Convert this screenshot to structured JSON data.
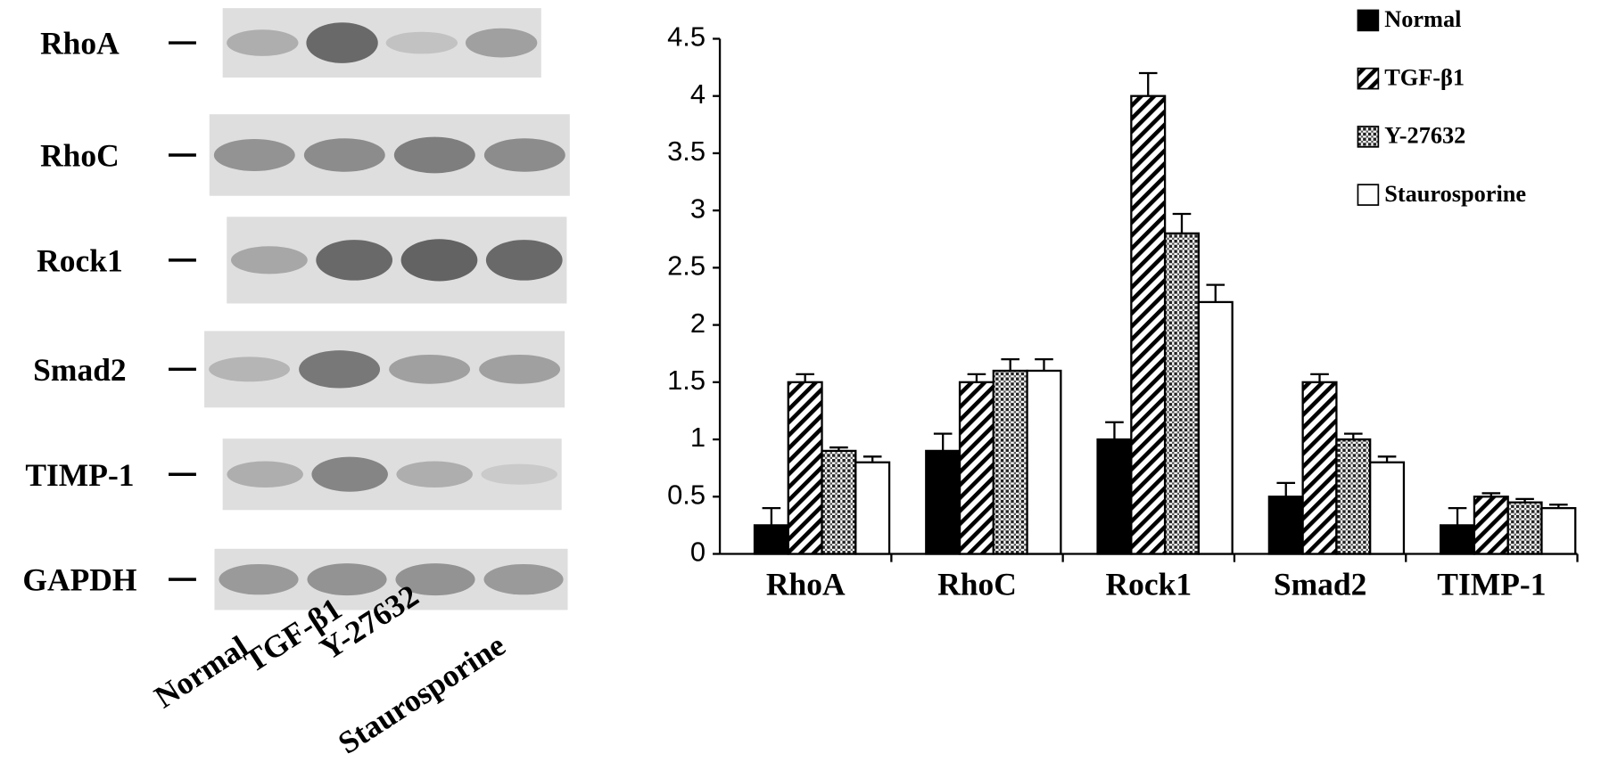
{
  "blot": {
    "proteins": [
      "RhoA",
      "RhoC",
      "Rock1",
      "Smad2",
      "TIMP-1",
      "GAPDH"
    ],
    "lanes": [
      "Normal",
      "TGF-β1",
      "Y-27632",
      "Staurosporine"
    ]
  },
  "chart_data": {
    "type": "bar",
    "categories": [
      "RhoA",
      "RhoC",
      "Rock1",
      "Smad2",
      "TIMP-1"
    ],
    "series": [
      {
        "name": "Normal",
        "color": "#000000",
        "pattern": "solid",
        "values": [
          0.25,
          0.9,
          1.0,
          0.5,
          0.25
        ],
        "errors": [
          0.15,
          0.15,
          0.15,
          0.12,
          0.15
        ]
      },
      {
        "name": "TGF-β1",
        "color": "#000000",
        "pattern": "hatch",
        "values": [
          1.5,
          1.5,
          4.0,
          1.5,
          0.5
        ],
        "errors": [
          0.07,
          0.07,
          0.2,
          0.07,
          0.03
        ]
      },
      {
        "name": "Y-27632",
        "color": "#000000",
        "pattern": "crosshatch",
        "values": [
          0.9,
          1.6,
          2.8,
          1.0,
          0.45
        ],
        "errors": [
          0.03,
          0.1,
          0.17,
          0.05,
          0.03
        ]
      },
      {
        "name": "Staurosporine",
        "color": "#000000",
        "pattern": "none",
        "values": [
          0.8,
          1.6,
          2.2,
          0.8,
          0.4
        ],
        "errors": [
          0.05,
          0.1,
          0.15,
          0.05,
          0.03
        ]
      }
    ],
    "ylim": [
      0,
      4.5
    ],
    "yticks": [
      0,
      0.5,
      1,
      1.5,
      2,
      2.5,
      3,
      3.5,
      4,
      4.5
    ],
    "grid": false,
    "legend": "upper right"
  }
}
